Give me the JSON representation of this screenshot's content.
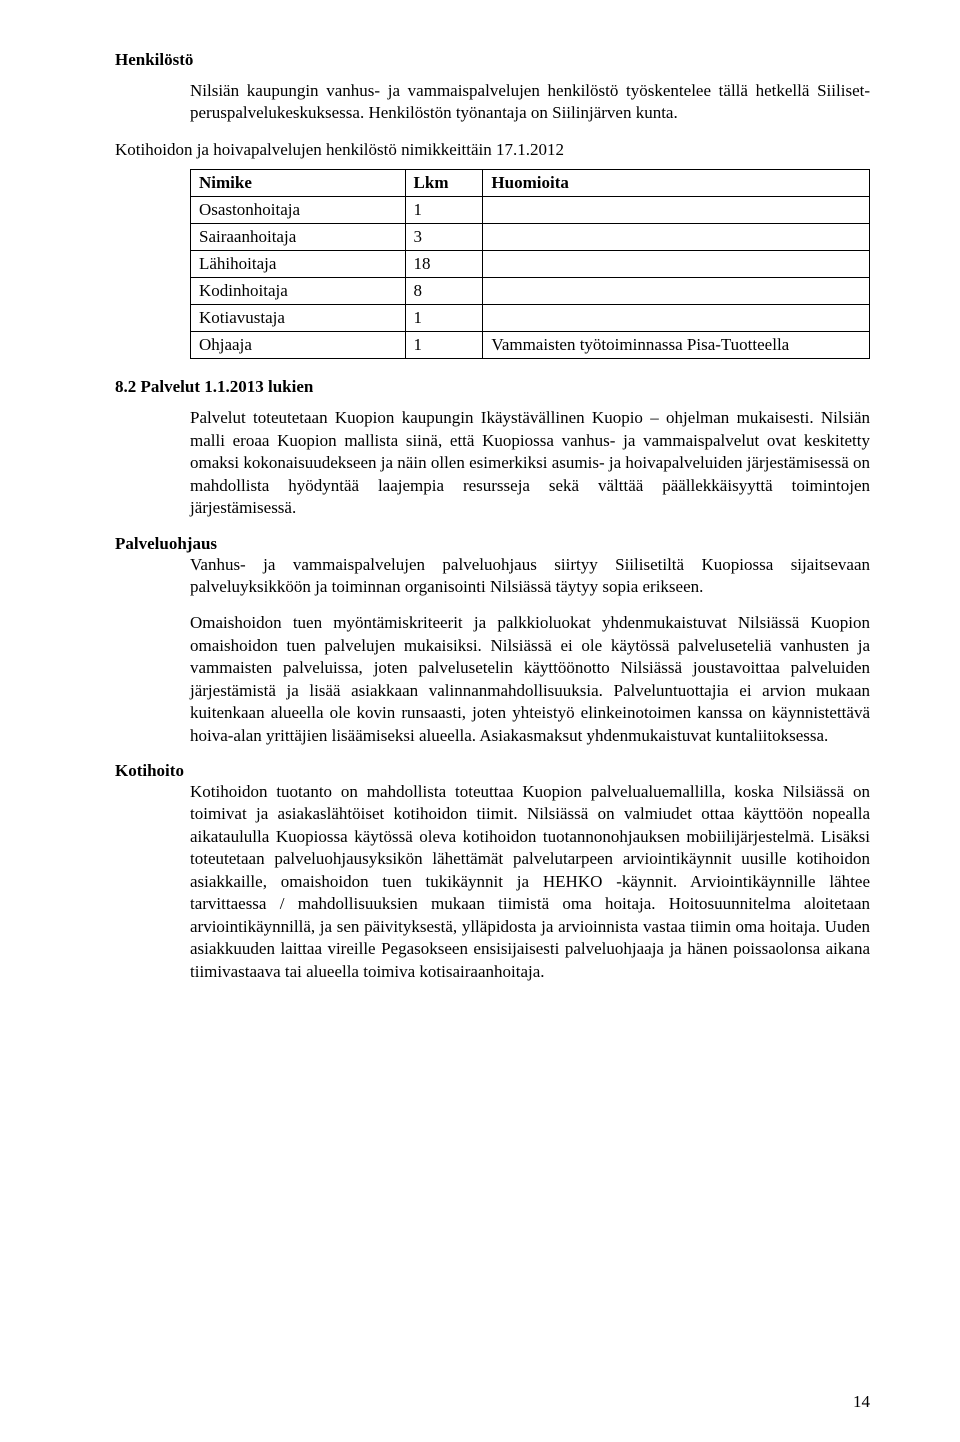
{
  "headings": {
    "henkilosto": "Henkilöstö",
    "palvelut": "8.2 Palvelut 1.1.2013 lukien",
    "palveluohjaus": "Palveluohjaus",
    "kotihoito": "Kotihoito"
  },
  "intro": {
    "p1": "Nilsiän kaupungin vanhus- ja vammaispalvelujen henkilöstö työskentelee tällä hetkellä Siiliset-peruspalvelukeskuksessa. Henkilöstön työnantaja on Siilinjärven kunta.",
    "table_lead": "Kotihoidon ja hoivapalvelujen henkilöstö nimikkeittäin 17.1.2012"
  },
  "table": {
    "headers": {
      "c1": "Nimike",
      "c2": "Lkm",
      "c3": "Huomioita"
    },
    "rows": [
      {
        "c1": "Osastonhoitaja",
        "c2": "1",
        "c3": ""
      },
      {
        "c1": "Sairaanhoitaja",
        "c2": "3",
        "c3": ""
      },
      {
        "c1": "Lähihoitaja",
        "c2": "18",
        "c3": ""
      },
      {
        "c1": "Kodinhoitaja",
        "c2": "8",
        "c3": ""
      },
      {
        "c1": "Kotiavustaja",
        "c2": "1",
        "c3": ""
      },
      {
        "c1": "Ohjaaja",
        "c2": "1",
        "c3": "Vammaisten työtoiminnassa Pisa-Tuotteella"
      }
    ]
  },
  "palvelut_body": {
    "p1": "Palvelut toteutetaan Kuopion kaupungin Ikäystävällinen Kuopio – ohjelman mukaisesti. Nilsiän malli eroaa Kuopion mallista siinä, että Kuopiossa vanhus- ja vammaispalvelut ovat keskitetty omaksi kokonaisuudekseen ja näin ollen esimerkiksi asumis- ja hoivapalveluiden järjestämisessä on mahdollista hyödyntää laajempia resursseja sekä välttää päällekkäisyyttä toimintojen järjestämisessä."
  },
  "palveluohjaus_body": {
    "p1": "Vanhus- ja vammaispalvelujen palveluohjaus siirtyy Siilisetiltä Kuopiossa sijaitsevaan palveluyksikköön ja toiminnan organisointi Nilsiässä täytyy sopia erikseen.",
    "p2": "Omaishoidon tuen myöntämiskriteerit ja palkkioluokat yhdenmukaistuvat Nilsiässä Kuopion omaishoidon tuen palvelujen mukaisiksi. Nilsiässä ei ole käytössä palveluseteliä vanhusten ja vammaisten palveluissa, joten palvelusetelin käyttöönotto Nilsiässä joustavoittaa palveluiden järjestämistä ja lisää asiakkaan valinnanmahdollisuuksia. Palveluntuottajia ei arvion mukaan kuitenkaan alueella ole kovin runsaasti, joten yhteistyö elinkeinotoimen kanssa on käynnistettävä hoiva-alan yrittäjien lisäämiseksi alueella. Asiakasmaksut yhdenmukaistuvat kuntaliitoksessa."
  },
  "kotihoito_body": {
    "p1": "Kotihoidon tuotanto on mahdollista toteuttaa Kuopion palvelualuemallilla, koska Nilsiässä on toimivat ja asiakaslähtöiset kotihoidon tiimit. Nilsiässä on valmiudet ottaa käyttöön nopealla aikataululla Kuopiossa käytössä oleva kotihoidon tuotannonohjauksen mobiilijärjestelmä. Lisäksi toteutetaan palveluohjausyksikön lähettämät palvelutarpeen arviointikäynnit uusille kotihoidon asiakkaille, omaishoidon tuen tukikäynnit ja HEHKO -käynnit. Arviointikäynnille lähtee tarvittaessa / mahdollisuuksien mukaan tiimistä oma hoitaja. Hoitosuunnitelma aloitetaan arviointikäynnillä, ja sen päivityksestä, ylläpidosta ja arvioinnista vastaa tiimin oma hoitaja. Uuden asiakkuuden laittaa vireille Pegasokseen ensisijaisesti palveluohjaaja ja hänen poissaolonsa aikana tiimivastaava tai alueella toimiva kotisairaanhoitaja."
  },
  "page_number": "14"
}
